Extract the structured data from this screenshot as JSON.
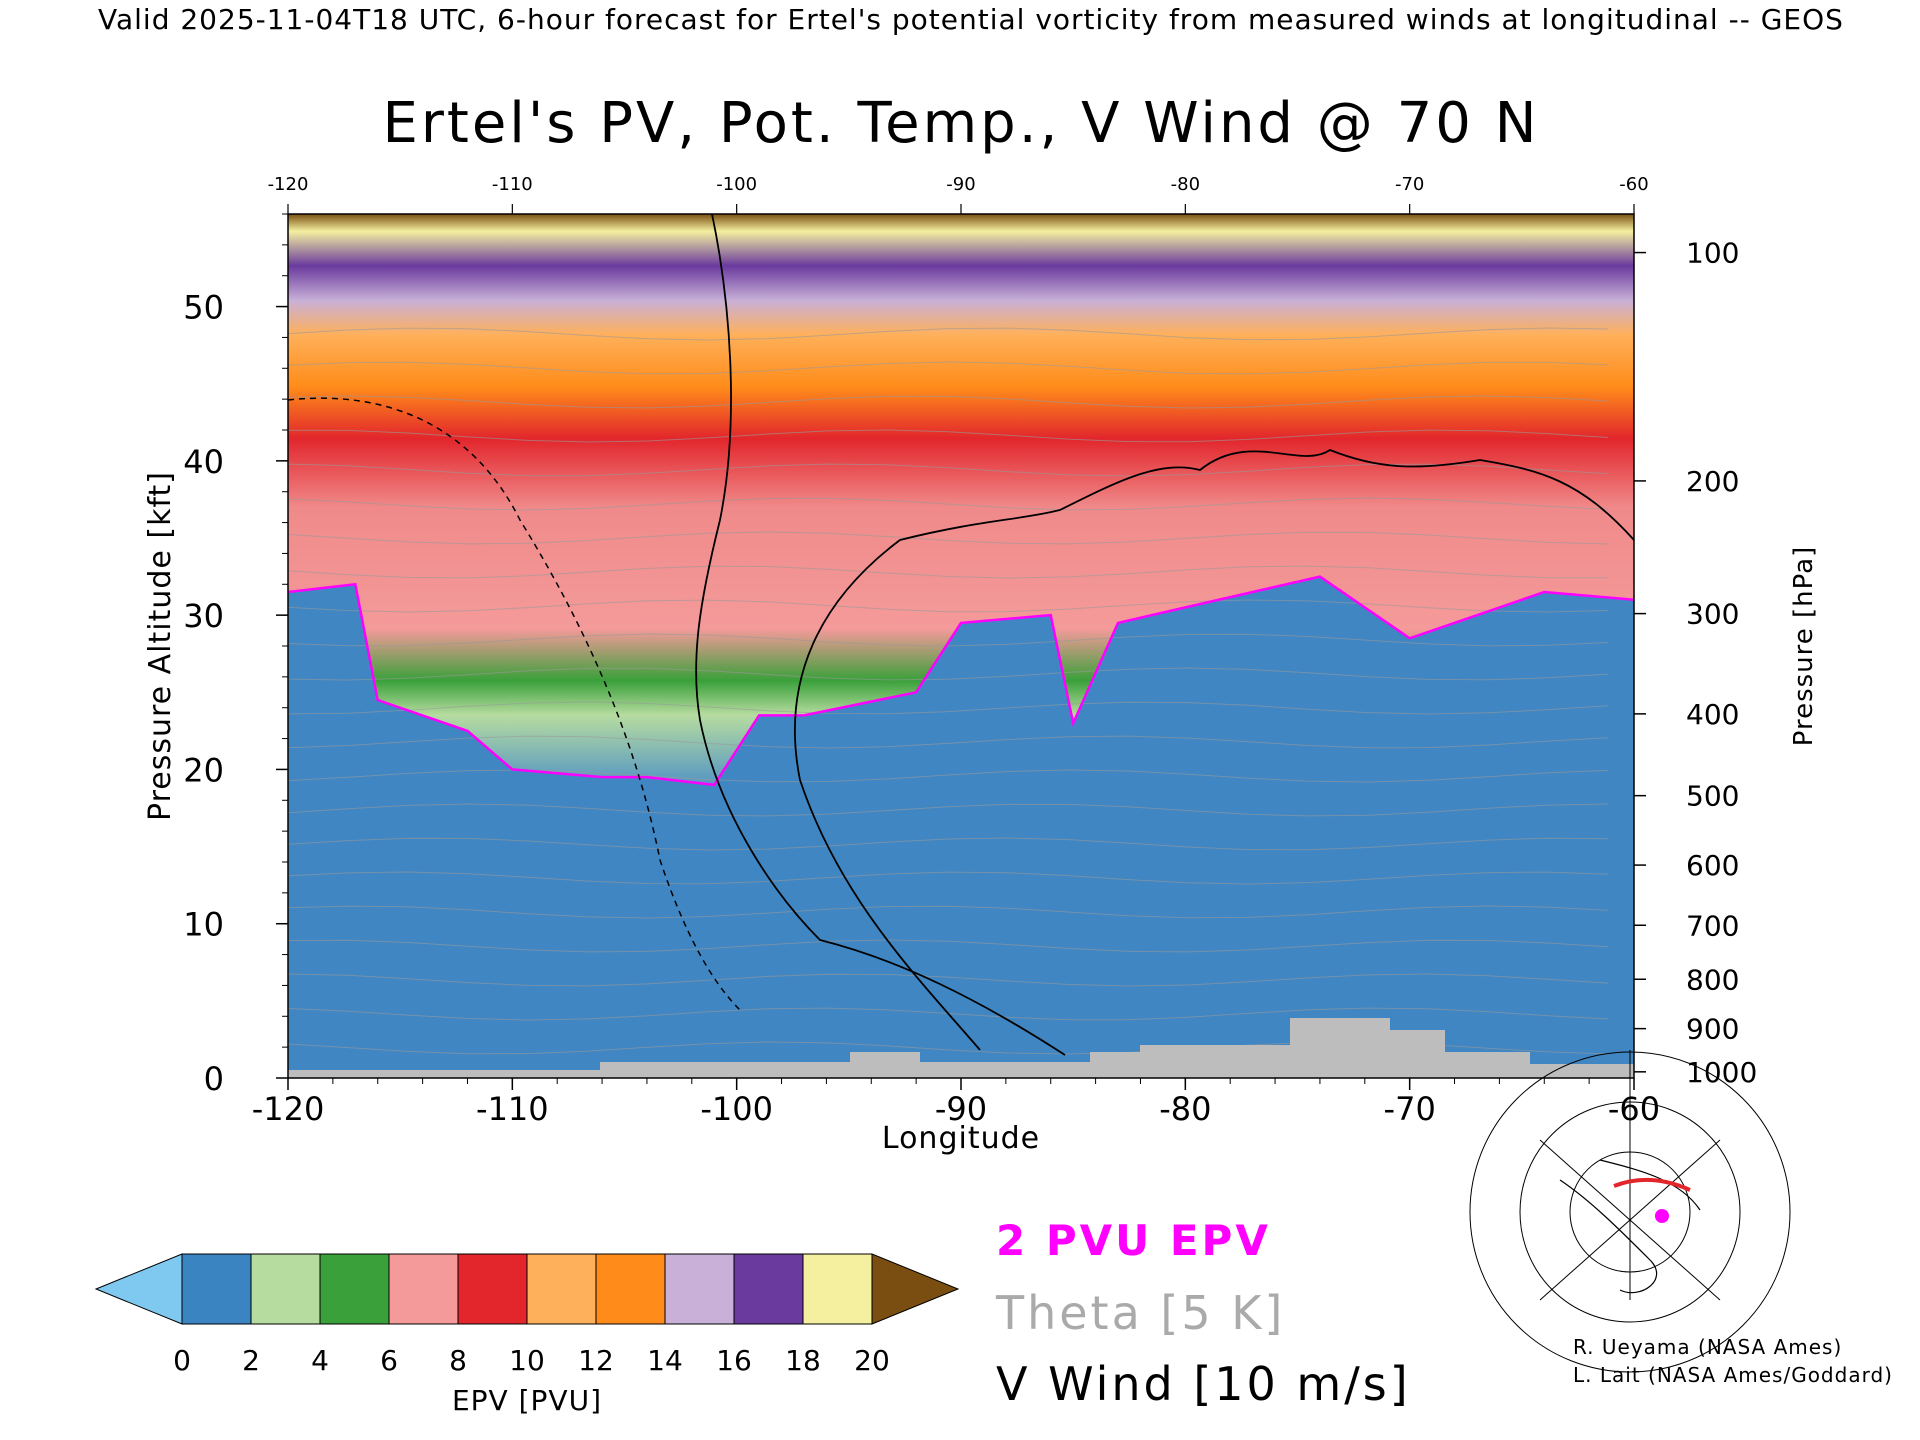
{
  "header": "Valid 2025-11-04T18 UTC, 6-hour forecast for Ertel's potential vorticity from measured winds at longitudinal -- GEOS",
  "chart_data": {
    "type": "heatmap",
    "title": "Ertel's PV, Pot. Temp., V Wind @ 70 N",
    "xlabel": "Longitude",
    "ylabel_left": "Pressure Altitude [kft]",
    "ylabel_right": "Pressure [hPa]",
    "xlim": [
      -120,
      -60
    ],
    "ylim": [
      0,
      56
    ],
    "x_ticks": [
      -120,
      -110,
      -100,
      -90,
      -80,
      -70,
      -60
    ],
    "y_ticks": [
      0,
      10,
      20,
      30,
      40,
      50
    ],
    "pressure_ticks": [
      {
        "label": "100",
        "kft": 53.5
      },
      {
        "label": "200",
        "kft": 38.7
      },
      {
        "label": "300",
        "kft": 30.1
      },
      {
        "label": "400",
        "kft": 23.6
      },
      {
        "label": "500",
        "kft": 18.3
      },
      {
        "label": "600",
        "kft": 13.8
      },
      {
        "label": "700",
        "kft": 9.9
      },
      {
        "label": "800",
        "kft": 6.4
      },
      {
        "label": "900",
        "kft": 3.2
      },
      {
        "label": "1000",
        "kft": 0.4
      }
    ],
    "tropopause_2pvu_kft": [
      {
        "lon": -120,
        "kft": 31.5
      },
      {
        "lon": -117,
        "kft": 32.0
      },
      {
        "lon": -116,
        "kft": 24.5
      },
      {
        "lon": -112,
        "kft": 22.5
      },
      {
        "lon": -110,
        "kft": 20.0
      },
      {
        "lon": -106,
        "kft": 19.5
      },
      {
        "lon": -104,
        "kft": 19.5
      },
      {
        "lon": -101,
        "kft": 19.0
      },
      {
        "lon": -99,
        "kft": 23.5
      },
      {
        "lon": -97,
        "kft": 23.5
      },
      {
        "lon": -92,
        "kft": 25.0
      },
      {
        "lon": -90,
        "kft": 29.5
      },
      {
        "lon": -86,
        "kft": 30.0
      },
      {
        "lon": -85,
        "kft": 23.0
      },
      {
        "lon": -83,
        "kft": 29.5
      },
      {
        "lon": -80,
        "kft": 30.5
      },
      {
        "lon": -74,
        "kft": 32.5
      },
      {
        "lon": -70,
        "kft": 28.5
      },
      {
        "lon": -64,
        "kft": 31.5
      },
      {
        "lon": -60,
        "kft": 31.0
      }
    ],
    "v_wind_contour_label": "10",
    "colorbar": {
      "label": "EPV [PVU]",
      "ticks": [
        "0",
        "2",
        "4",
        "6",
        "8",
        "10",
        "12",
        "14",
        "16",
        "18",
        "20"
      ],
      "colors": [
        "#7fc8f0",
        "#3a84c2",
        "#b6dca0",
        "#3aa03a",
        "#f49a9a",
        "#e2262c",
        "#ffb05a",
        "#ff8c1a",
        "#c8b0d8",
        "#6a3a9e",
        "#f4f0a0",
        "#7a4e10"
      ]
    },
    "legend": [
      {
        "label": "2 PVU EPV",
        "color": "#ff00ff"
      },
      {
        "label": "Theta [5 K]",
        "color": "#aaaaaa"
      },
      {
        "label": "V Wind [10 m/s]",
        "color": "#000000"
      }
    ]
  },
  "credits": [
    "R. Ueyama (NASA Ames)",
    "L. Lait (NASA Ames/Goddard)"
  ]
}
